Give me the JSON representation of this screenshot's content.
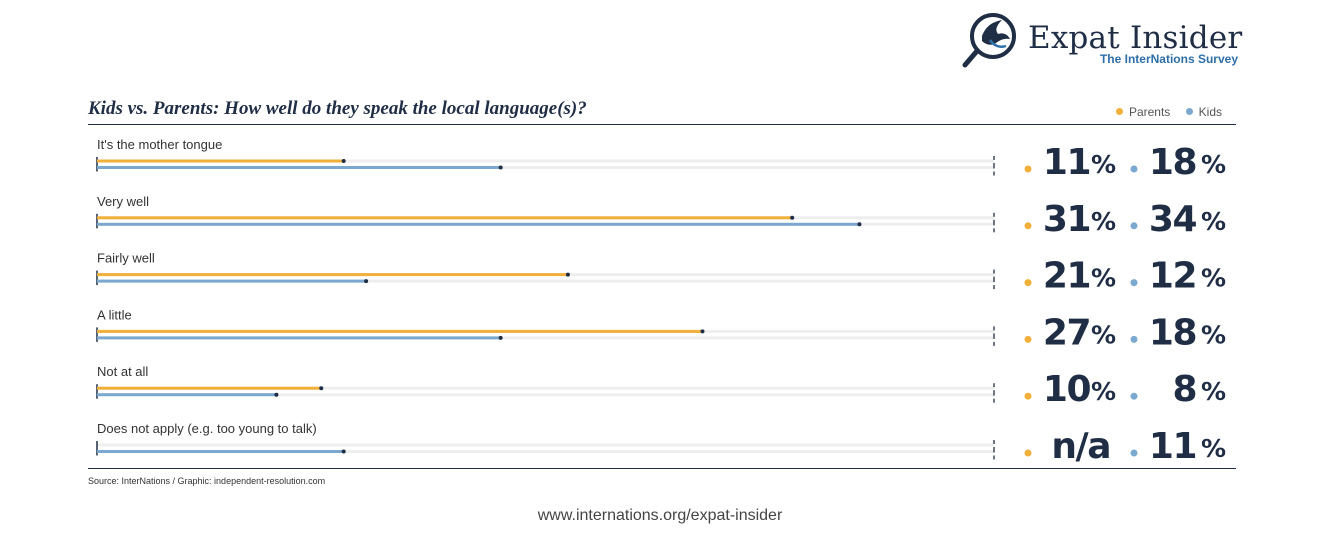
{
  "logo": {
    "title": "Expat Insider",
    "subtitle": "The InterNations Survey"
  },
  "legend": {
    "parents": "Parents",
    "kids": "Kids"
  },
  "colors": {
    "parents": "#f0b03a",
    "kids": "#7aa8cf",
    "text": "#1f2d45"
  },
  "source": "Source: InterNations / Graphic: independent-resolution.com",
  "footer_url": "www.internations.org/expat-insider",
  "chart_data": {
    "type": "bar",
    "orientation": "horizontal",
    "title": "Kids vs. Parents: How well do they speak the local language(s)?",
    "categories": [
      "It's the mother tongue",
      "Very well",
      "Fairly well",
      "A little",
      "Not at all",
      "Does not apply (e.g. too young to talk)"
    ],
    "series": [
      {
        "name": "Parents",
        "values": [
          11,
          31,
          21,
          27,
          10,
          null
        ],
        "labels": [
          "11",
          "31",
          "21",
          "27",
          "10",
          "n/a"
        ]
      },
      {
        "name": "Kids",
        "values": [
          18,
          34,
          12,
          18,
          8,
          11
        ],
        "labels": [
          "18",
          "34",
          "12",
          "18",
          "8",
          "11"
        ]
      }
    ],
    "unit": "%",
    "xlim": [
      0,
      40
    ],
    "legend_position": "top-right"
  }
}
